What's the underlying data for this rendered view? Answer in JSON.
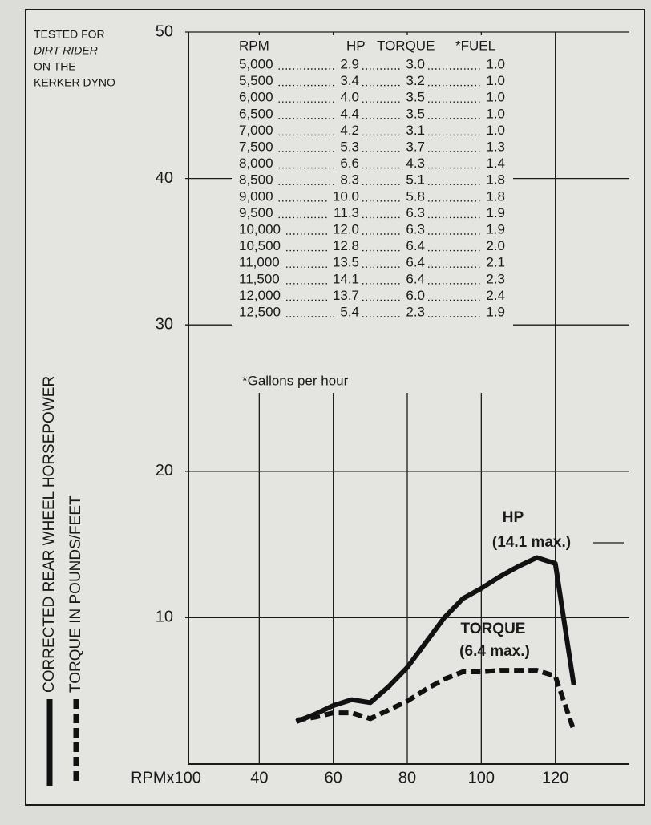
{
  "chart_data": {
    "type": "line",
    "note": [
      "TESTED FOR",
      "DIRT RIDER",
      "ON THE",
      "KERKER DYNO"
    ],
    "xlabel": "RPMx100",
    "xlim": [
      20,
      140
    ],
    "xticks": [
      40,
      60,
      80,
      100,
      120
    ],
    "ylim": [
      0,
      50
    ],
    "yticks": [
      10,
      20,
      30,
      40,
      50
    ],
    "grid": true,
    "x": [
      50,
      55,
      60,
      65,
      70,
      75,
      80,
      85,
      90,
      95,
      100,
      105,
      110,
      115,
      120,
      125
    ],
    "series": [
      {
        "name": "CORRECTED REAR WHEEL HORSEPOWER",
        "color": "#111111",
        "style": "solid",
        "values": [
          2.9,
          3.4,
          4.0,
          4.4,
          4.2,
          5.3,
          6.6,
          8.3,
          10.0,
          11.3,
          12.0,
          12.8,
          13.5,
          14.1,
          13.7,
          5.4
        ]
      },
      {
        "name": "TORQUE IN POUNDS/FEET",
        "color": "#111111",
        "style": "dashed",
        "values": [
          3.0,
          3.2,
          3.5,
          3.5,
          3.1,
          3.7,
          4.3,
          5.1,
          5.8,
          6.3,
          6.3,
          6.4,
          6.4,
          6.4,
          6.0,
          2.3
        ]
      }
    ],
    "annotations": [
      "HP",
      "(14.1 max.)",
      "TORQUE",
      "(6.4 max.)"
    ],
    "table": {
      "columns": [
        "RPM",
        "HP",
        "TORQUE",
        "*FUEL"
      ],
      "rows": [
        [
          "5,000",
          "2.9",
          "3.0",
          "1.0"
        ],
        [
          "5,500",
          "3.4",
          "3.2",
          "1.0"
        ],
        [
          "6,000",
          "4.0",
          "3.5",
          "1.0"
        ],
        [
          "6,500",
          "4.4",
          "3.5",
          "1.0"
        ],
        [
          "7,000",
          "4.2",
          "3.1",
          "1.0"
        ],
        [
          "7,500",
          "5.3",
          "3.7",
          "1.3"
        ],
        [
          "8,000",
          "6.6",
          "4.3",
          "1.4"
        ],
        [
          "8,500",
          "8.3",
          "5.1",
          "1.8"
        ],
        [
          "9,000",
          "10.0",
          "5.8",
          "1.8"
        ],
        [
          "9,500",
          "11.3",
          "6.3",
          "1.9"
        ],
        [
          "10,000",
          "12.0",
          "6.3",
          "1.9"
        ],
        [
          "10,500",
          "12.8",
          "6.4",
          "2.0"
        ],
        [
          "11,000",
          "13.5",
          "6.4",
          "2.1"
        ],
        [
          "11,500",
          "14.1",
          "6.4",
          "2.3"
        ],
        [
          "12,000",
          "13.7",
          "6.0",
          "2.4"
        ],
        [
          "12,500",
          "5.4",
          "2.3",
          "1.9"
        ]
      ],
      "footnote": "*Gallons per hour"
    }
  }
}
